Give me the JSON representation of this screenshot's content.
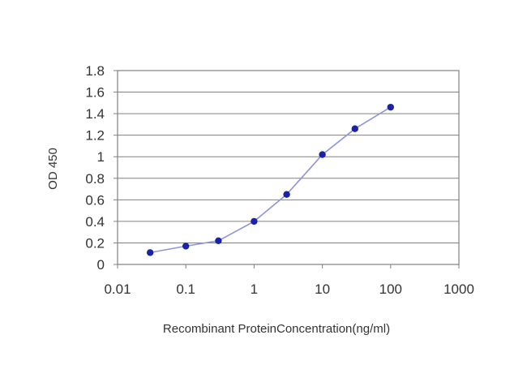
{
  "chart_data": {
    "type": "line",
    "title": "",
    "xlabel": "Recombinant ProteinConcentration(ng/ml)",
    "ylabel": "OD 450",
    "x_scale": "log",
    "xlim": [
      0.01,
      1000
    ],
    "ylim": [
      0,
      1.8
    ],
    "x_ticks": [
      "0.01",
      "0.1",
      "1",
      "10",
      "100",
      "1000"
    ],
    "y_ticks": [
      "0",
      "0.2",
      "0.4",
      "0.6",
      "0.8",
      "1",
      "1.2",
      "1.4",
      "1.6",
      "1.8"
    ],
    "grid": "horizontal",
    "series": [
      {
        "x": [
          0.03,
          0.1,
          0.3,
          1,
          3,
          10,
          30,
          100
        ],
        "y": [
          0.11,
          0.17,
          0.22,
          0.4,
          0.65,
          1.02,
          1.26,
          1.46
        ]
      }
    ],
    "colors": {
      "line": "#8f95d6",
      "marker": "#1a22a8",
      "grid": "#808080",
      "axis": "#808080"
    }
  }
}
